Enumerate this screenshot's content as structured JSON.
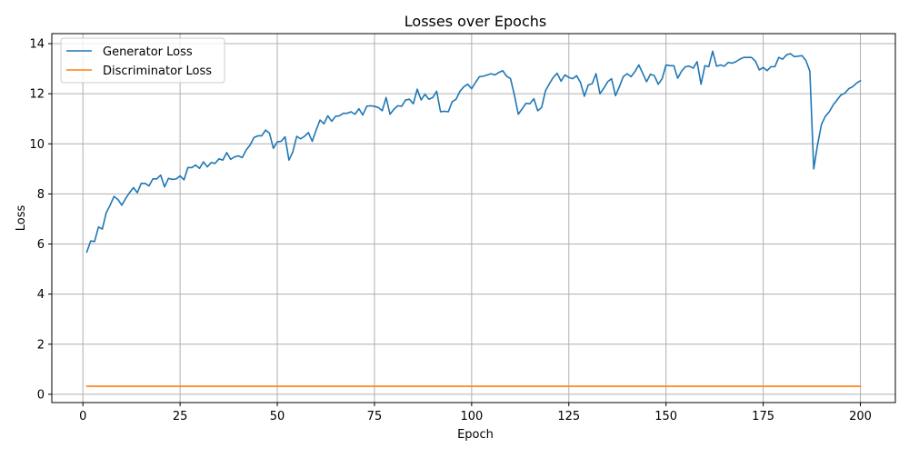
{
  "chart_data": {
    "type": "line",
    "title": "Losses over Epochs",
    "xlabel": "Epoch",
    "ylabel": "Loss",
    "xlim": [
      -8,
      209
    ],
    "ylim": [
      -0.33,
      14.4
    ],
    "xticks": [
      0,
      25,
      50,
      75,
      100,
      125,
      150,
      175,
      200
    ],
    "yticks": [
      0,
      2,
      4,
      6,
      8,
      10,
      12,
      14
    ],
    "grid": true,
    "legend_position": "top-left",
    "series": [
      {
        "name": "Generator Loss",
        "color": "#1f77b4",
        "x": [
          1,
          2,
          3,
          4,
          5,
          6,
          7,
          8,
          9,
          10,
          11,
          12,
          13,
          14,
          15,
          16,
          17,
          18,
          19,
          20,
          21,
          22,
          23,
          24,
          25,
          26,
          27,
          28,
          29,
          30,
          31,
          32,
          33,
          34,
          35,
          36,
          37,
          38,
          39,
          40,
          41,
          42,
          43,
          44,
          45,
          46,
          47,
          48,
          49,
          50,
          51,
          52,
          53,
          54,
          55,
          56,
          57,
          58,
          59,
          60,
          61,
          62,
          63,
          64,
          65,
          66,
          67,
          68,
          69,
          70,
          71,
          72,
          73,
          74,
          75,
          76,
          77,
          78,
          79,
          80,
          81,
          82,
          83,
          84,
          85,
          86,
          87,
          88,
          89,
          90,
          91,
          92,
          93,
          94,
          95,
          96,
          97,
          98,
          99,
          100,
          101,
          102,
          103,
          104,
          105,
          106,
          107,
          108,
          109,
          110,
          111,
          112,
          113,
          114,
          115,
          116,
          117,
          118,
          119,
          120,
          121,
          122,
          123,
          124,
          125,
          126,
          127,
          128,
          129,
          130,
          131,
          132,
          133,
          134,
          135,
          136,
          137,
          138,
          139,
          140,
          141,
          142,
          143,
          144,
          145,
          146,
          147,
          148,
          149,
          150,
          151,
          152,
          153,
          154,
          155,
          156,
          157,
          158,
          159,
          160,
          161,
          162,
          163,
          164,
          165,
          166,
          167,
          168,
          169,
          170,
          171,
          172,
          173,
          174,
          175,
          176,
          177,
          178,
          179,
          180,
          181,
          182,
          183,
          184,
          185,
          186,
          187,
          188,
          189,
          190,
          191,
          192,
          193,
          194,
          195,
          196,
          197,
          198,
          199,
          200
        ],
        "y": [
          5.68,
          6.12,
          6.1,
          6.68,
          6.6,
          7.25,
          7.55,
          7.9,
          7.78,
          7.55,
          7.82,
          8.05,
          8.25,
          8.05,
          8.42,
          8.42,
          8.32,
          8.6,
          8.6,
          8.75,
          8.28,
          8.62,
          8.58,
          8.6,
          8.72,
          8.56,
          9.05,
          9.05,
          9.15,
          9.02,
          9.28,
          9.08,
          9.25,
          9.22,
          9.4,
          9.35,
          9.65,
          9.38,
          9.48,
          9.52,
          9.45,
          9.75,
          9.95,
          10.25,
          10.32,
          10.32,
          10.55,
          10.42,
          9.82,
          10.08,
          10.1,
          10.28,
          9.35,
          9.68,
          10.3,
          10.2,
          10.3,
          10.45,
          10.1,
          10.55,
          10.95,
          10.8,
          11.12,
          10.9,
          11.1,
          11.12,
          11.22,
          11.22,
          11.28,
          11.18,
          11.4,
          11.15,
          11.5,
          11.52,
          11.5,
          11.45,
          11.32,
          11.85,
          11.18,
          11.38,
          11.52,
          11.5,
          11.75,
          11.78,
          11.6,
          12.18,
          11.75,
          11.98,
          11.78,
          11.85,
          12.1,
          11.28,
          11.3,
          11.28,
          11.68,
          11.78,
          12.1,
          12.28,
          12.38,
          12.2,
          12.45,
          12.68,
          12.7,
          12.75,
          12.8,
          12.75,
          12.85,
          12.92,
          12.7,
          12.6,
          11.95,
          11.18,
          11.4,
          11.62,
          11.6,
          11.8,
          11.32,
          11.45,
          12.12,
          12.4,
          12.65,
          12.82,
          12.5,
          12.75,
          12.65,
          12.6,
          12.72,
          12.45,
          11.9,
          12.35,
          12.4,
          12.8,
          12.0,
          12.22,
          12.48,
          12.6,
          11.92,
          12.28,
          12.68,
          12.8,
          12.68,
          12.88,
          13.15,
          12.82,
          12.48,
          12.78,
          12.72,
          12.38,
          12.6,
          13.15,
          13.12,
          13.12,
          12.62,
          12.9,
          13.08,
          13.1,
          13.02,
          13.28,
          12.38,
          13.12,
          13.08,
          13.7,
          13.1,
          13.15,
          13.1,
          13.25,
          13.22,
          13.28,
          13.38,
          13.45,
          13.45,
          13.45,
          13.3,
          12.95,
          13.05,
          12.92,
          13.08,
          13.08,
          13.45,
          13.38,
          13.55,
          13.6,
          13.48,
          13.5,
          13.52,
          13.32,
          12.9,
          9.0,
          9.98,
          10.78,
          11.1,
          11.28,
          11.55,
          11.75,
          11.95,
          12.02,
          12.2,
          12.28,
          12.42,
          12.52
        ]
      },
      {
        "name": "Discriminator Loss",
        "color": "#ff7f0e",
        "x": [
          1,
          200
        ],
        "y": [
          0.32,
          0.32
        ]
      }
    ]
  }
}
